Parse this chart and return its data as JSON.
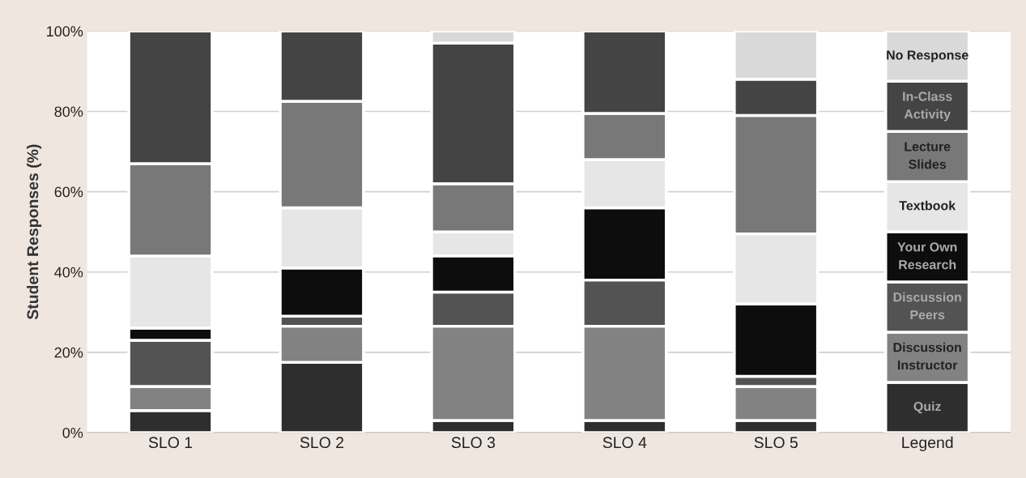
{
  "chart_data": {
    "type": "bar",
    "stacked": true,
    "ylabel": "Student Responses (%)",
    "categories": [
      "SLO 1",
      "SLO 2",
      "SLO 3",
      "SLO 4",
      "SLO 5",
      "Legend"
    ],
    "series": [
      {
        "name": "Quiz",
        "color": "#2e2e2e",
        "values": [
          5.5,
          17.5,
          3,
          3,
          3,
          12.5
        ]
      },
      {
        "name": "Discussion\nInstructor",
        "color": "#828282",
        "values": [
          6,
          9,
          23.5,
          23.5,
          8.5,
          12.5
        ]
      },
      {
        "name": "Discussion\nPeers",
        "color": "#535353",
        "values": [
          11.5,
          2.5,
          8.5,
          11.5,
          2.5,
          12.5
        ]
      },
      {
        "name": "Your Own\nResearch",
        "color": "#0d0d0d",
        "values": [
          3,
          12,
          9,
          18,
          18,
          12.5
        ]
      },
      {
        "name": "Textbook",
        "color": "#e6e6e6",
        "values": [
          18,
          15,
          6,
          12,
          17.5,
          12.5
        ]
      },
      {
        "name": "Lecture\nSlides",
        "color": "#787878",
        "values": [
          23,
          26.5,
          12,
          11.5,
          29.5,
          12.5
        ]
      },
      {
        "name": "In-Class\nActivity",
        "color": "#444444",
        "values": [
          33,
          17.5,
          35,
          20.5,
          9,
          12.5
        ]
      },
      {
        "name": "No Response",
        "color": "#d9d9d9",
        "values": [
          0,
          0,
          3,
          0,
          12,
          12.5
        ]
      }
    ],
    "ylim": [
      0,
      100
    ],
    "yticks": [
      {
        "value": 0,
        "label": "0%"
      },
      {
        "value": 20,
        "label": "20%"
      },
      {
        "value": 40,
        "label": "40%"
      },
      {
        "value": 60,
        "label": "60%"
      },
      {
        "value": 80,
        "label": "80%"
      },
      {
        "value": 100,
        "label": "100%"
      }
    ],
    "grid": "y",
    "legend": false
  }
}
